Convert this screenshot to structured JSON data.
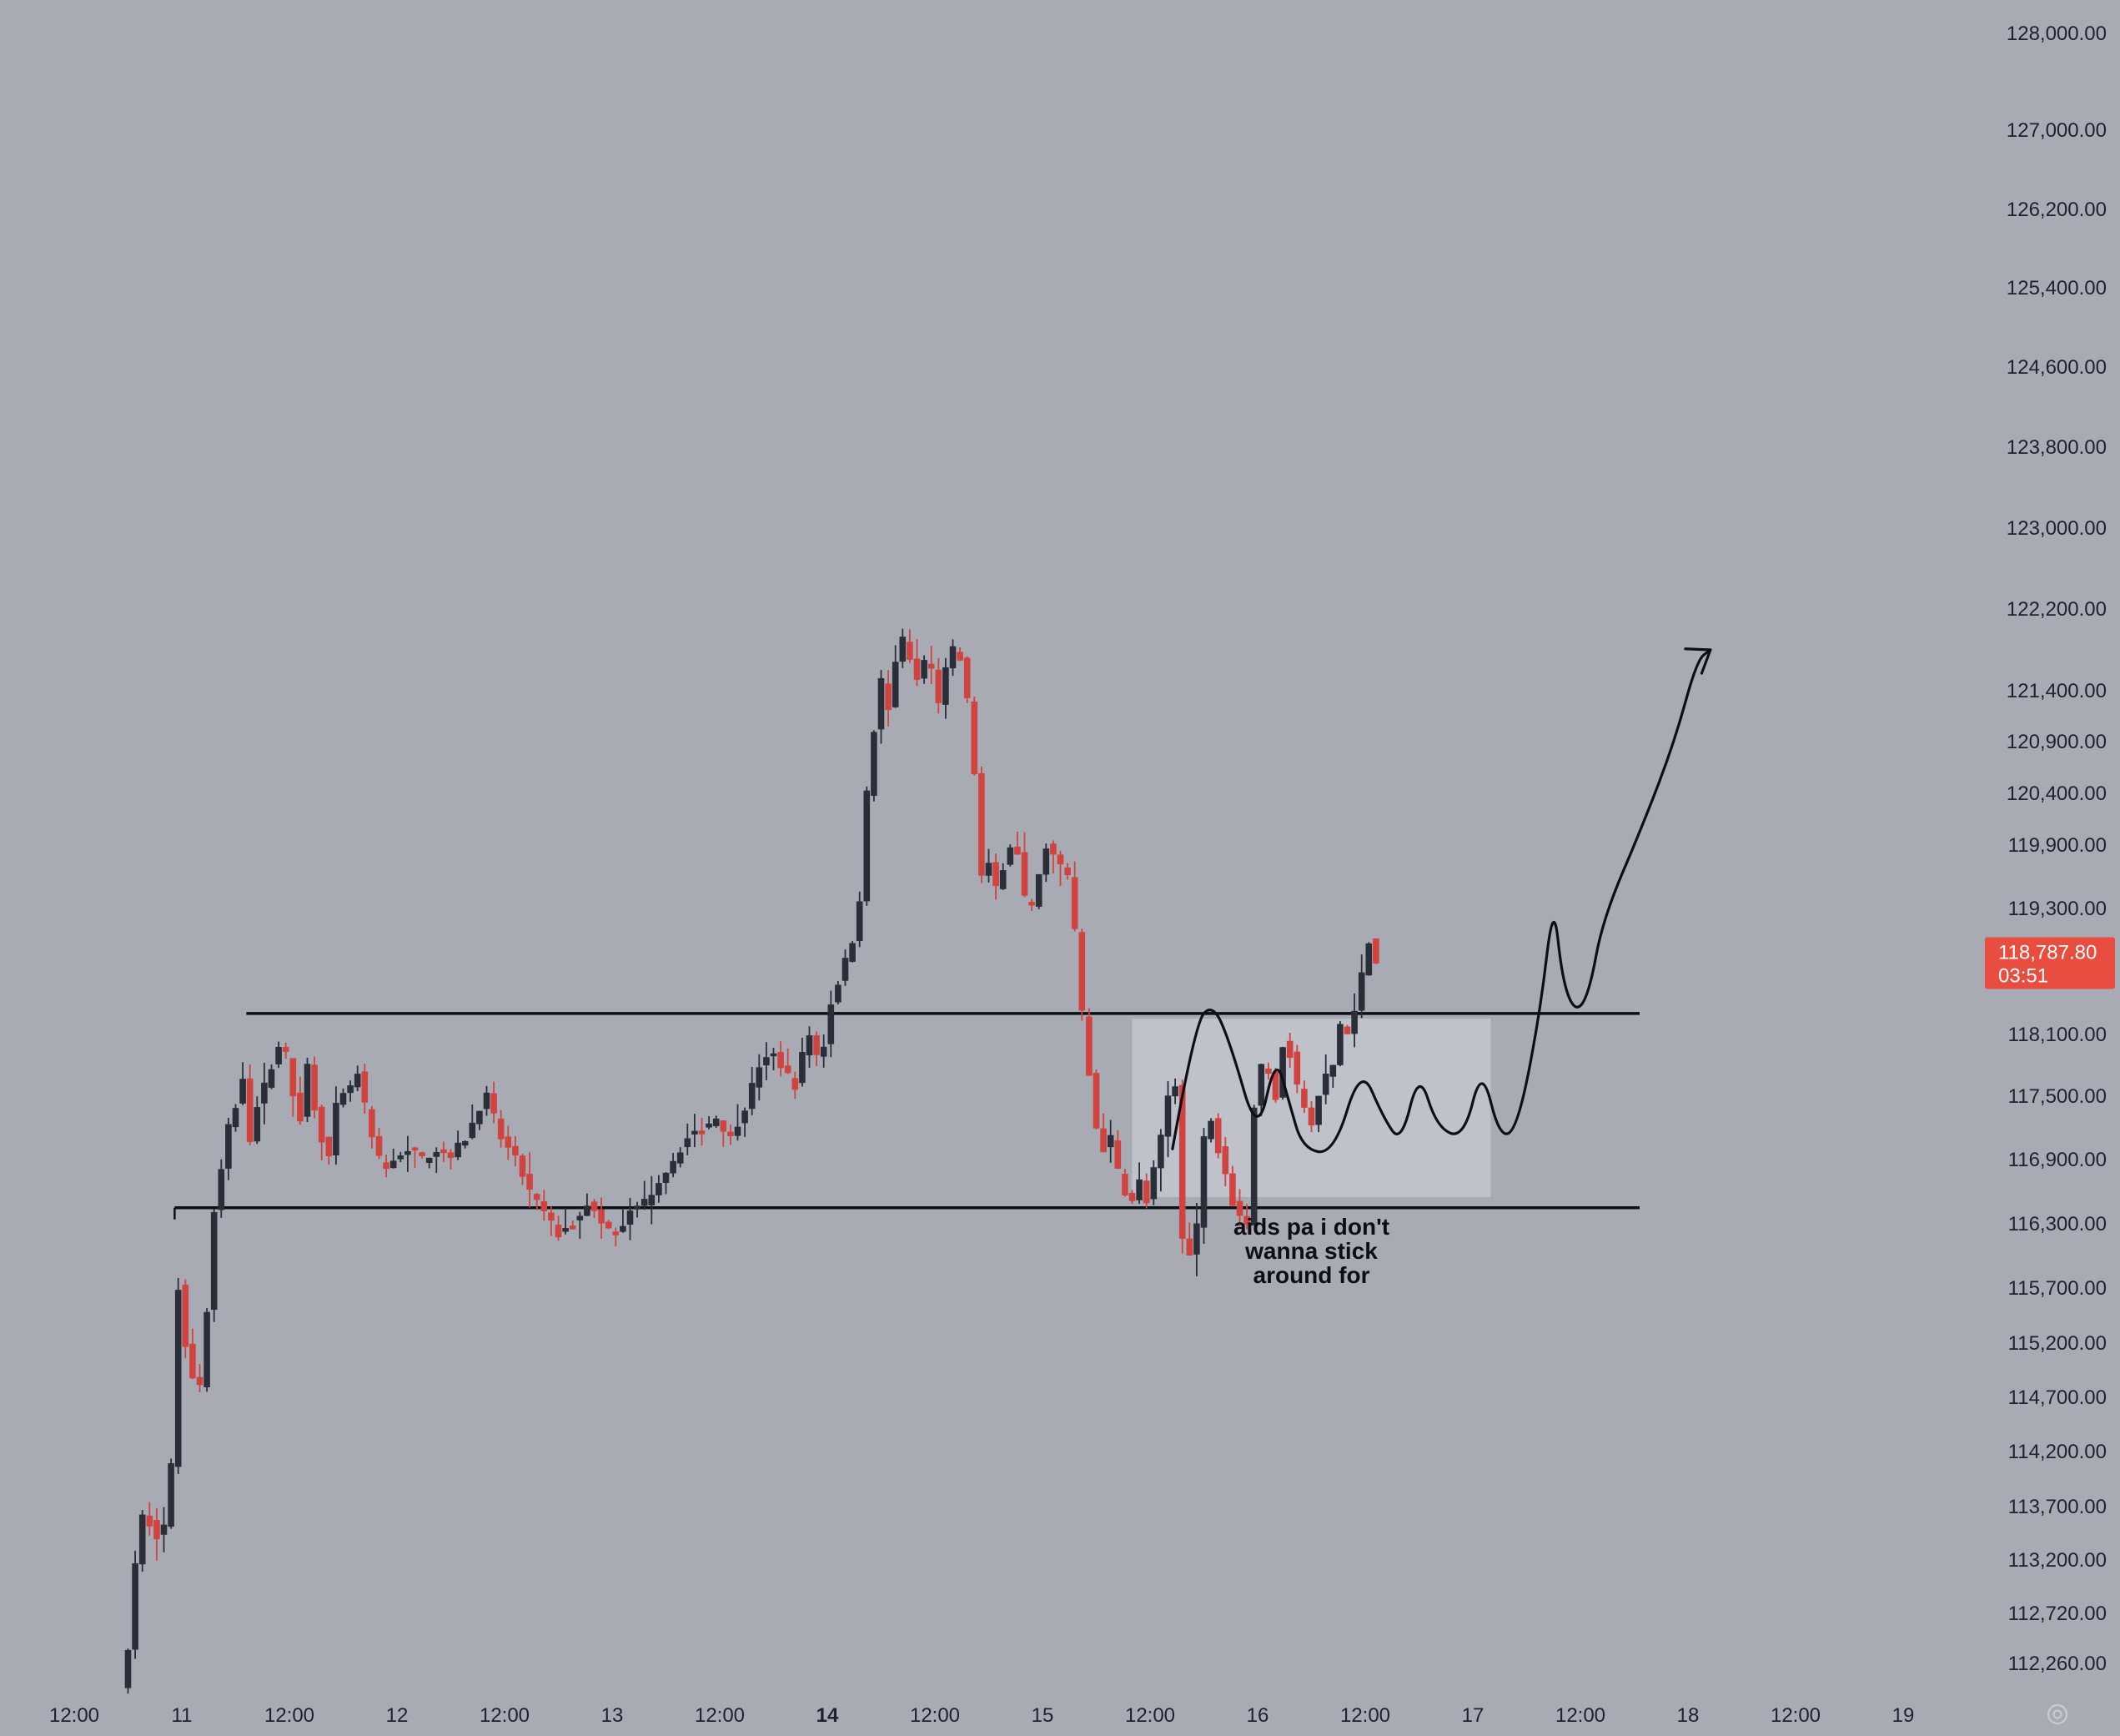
{
  "chart_data": {
    "type": "candlestick",
    "title": "",
    "price_axis": {
      "ticks": [
        {
          "value": 128000,
          "label": "128,000.00"
        },
        {
          "value": 127000,
          "label": "127,000.00"
        },
        {
          "value": 126200,
          "label": "126,200.00"
        },
        {
          "value": 125400,
          "label": "125,400.00"
        },
        {
          "value": 124600,
          "label": "124,600.00"
        },
        {
          "value": 123800,
          "label": "123,800.00"
        },
        {
          "value": 123000,
          "label": "123,000.00"
        },
        {
          "value": 122200,
          "label": "122,200.00"
        },
        {
          "value": 121400,
          "label": "121,400.00"
        },
        {
          "value": 120900,
          "label": "120,900.00"
        },
        {
          "value": 120400,
          "label": "120,400.00"
        },
        {
          "value": 119900,
          "label": "119,900.00"
        },
        {
          "value": 119300,
          "label": "119,300.00"
        },
        {
          "value": 118100,
          "label": "118,100.00"
        },
        {
          "value": 117500,
          "label": "117,500.00"
        },
        {
          "value": 116900,
          "label": "116,900.00"
        },
        {
          "value": 116300,
          "label": "116,300.00"
        },
        {
          "value": 115700,
          "label": "115,700.00"
        },
        {
          "value": 115200,
          "label": "115,200.00"
        },
        {
          "value": 114700,
          "label": "114,700.00"
        },
        {
          "value": 114200,
          "label": "114,200.00"
        },
        {
          "value": 113700,
          "label": "113,700.00"
        },
        {
          "value": 113200,
          "label": "113,200.00"
        },
        {
          "value": 112720,
          "label": "112,720.00"
        },
        {
          "value": 112260,
          "label": "112,260.00"
        }
      ]
    },
    "time_axis": {
      "ticks": [
        {
          "t": -12,
          "label": "12:00",
          "bold": false
        },
        {
          "t": 0,
          "label": "11",
          "bold": false
        },
        {
          "t": 12,
          "label": "12:00",
          "bold": false
        },
        {
          "t": 24,
          "label": "12",
          "bold": false
        },
        {
          "t": 36,
          "label": "12:00",
          "bold": false
        },
        {
          "t": 48,
          "label": "13",
          "bold": false
        },
        {
          "t": 60,
          "label": "12:00",
          "bold": false
        },
        {
          "t": 72,
          "label": "14",
          "bold": true
        },
        {
          "t": 84,
          "label": "12:00",
          "bold": false
        },
        {
          "t": 96,
          "label": "15",
          "bold": false
        },
        {
          "t": 108,
          "label": "12:00",
          "bold": false
        },
        {
          "t": 120,
          "label": "16",
          "bold": false
        },
        {
          "t": 132,
          "label": "12:00",
          "bold": false
        },
        {
          "t": 144,
          "label": "17",
          "bold": false
        },
        {
          "t": 156,
          "label": "12:00",
          "bold": false
        },
        {
          "t": 168,
          "label": "18",
          "bold": false
        },
        {
          "t": 180,
          "label": "12:00",
          "bold": false
        },
        {
          "t": 192,
          "label": "19",
          "bold": false
        }
      ]
    },
    "anchors": [
      [
        -6,
        112000
      ],
      [
        -5.2,
        112800
      ],
      [
        -4.4,
        113500
      ],
      [
        -3.6,
        113700
      ],
      [
        -2.8,
        113400
      ],
      [
        -2,
        113450
      ],
      [
        -1.2,
        113600
      ],
      [
        -0.6,
        114300
      ],
      [
        0,
        115700
      ],
      [
        0.8,
        115200
      ],
      [
        1.6,
        114900
      ],
      [
        2.4,
        114800
      ],
      [
        3.2,
        115500
      ],
      [
        4,
        116400
      ],
      [
        4.8,
        116800
      ],
      [
        5.6,
        117200
      ],
      [
        6.4,
        117400
      ],
      [
        7.2,
        117700
      ],
      [
        8,
        117100
      ],
      [
        8.8,
        117400
      ],
      [
        9.6,
        117600
      ],
      [
        10.4,
        117800
      ],
      [
        11.2,
        118000
      ],
      [
        12,
        117900
      ],
      [
        12.8,
        117500
      ],
      [
        13.6,
        117300
      ],
      [
        14.4,
        117800
      ],
      [
        15.2,
        117400
      ],
      [
        16,
        117100
      ],
      [
        16.8,
        116900
      ],
      [
        17.6,
        117400
      ],
      [
        18.4,
        117500
      ],
      [
        19.2,
        117600
      ],
      [
        20,
        117700
      ],
      [
        20.8,
        117400
      ],
      [
        21.6,
        117100
      ],
      [
        22.4,
        116900
      ],
      [
        23.2,
        116800
      ],
      [
        24,
        116900
      ],
      [
        25.6,
        117000
      ],
      [
        27.2,
        116900
      ],
      [
        28.8,
        117000
      ],
      [
        30.4,
        116950
      ],
      [
        32,
        117100
      ],
      [
        33.6,
        117400
      ],
      [
        34.4,
        117500
      ],
      [
        35.2,
        117300
      ],
      [
        36,
        117100
      ],
      [
        37.6,
        116900
      ],
      [
        39.2,
        116600
      ],
      [
        40.8,
        116400
      ],
      [
        42.4,
        116200
      ],
      [
        44,
        116300
      ],
      [
        45.6,
        116500
      ],
      [
        47.2,
        116300
      ],
      [
        48.8,
        116200
      ],
      [
        50.4,
        116400
      ],
      [
        52,
        116500
      ],
      [
        53.6,
        116700
      ],
      [
        55.2,
        116900
      ],
      [
        56.8,
        117100
      ],
      [
        58.4,
        117200
      ],
      [
        60,
        117300
      ],
      [
        61.6,
        117100
      ],
      [
        63.2,
        117400
      ],
      [
        64.8,
        117800
      ],
      [
        66.4,
        117900
      ],
      [
        68,
        117700
      ],
      [
        68.8,
        117600
      ],
      [
        69.6,
        117900
      ],
      [
        70.4,
        118100
      ],
      [
        71.2,
        117900
      ],
      [
        72,
        118000
      ],
      [
        72.8,
        118400
      ],
      [
        73.6,
        118600
      ],
      [
        74.4,
        118800
      ],
      [
        75.2,
        119000
      ],
      [
        76,
        119400
      ],
      [
        76.8,
        120400
      ],
      [
        77.6,
        121000
      ],
      [
        78.4,
        121500
      ],
      [
        79.2,
        121200
      ],
      [
        80,
        121700
      ],
      [
        80.8,
        121900
      ],
      [
        81.6,
        121700
      ],
      [
        82.4,
        121500
      ],
      [
        83.2,
        121700
      ],
      [
        84,
        121600
      ],
      [
        84.8,
        121300
      ],
      [
        85.6,
        121600
      ],
      [
        86.4,
        121800
      ],
      [
        87.2,
        121700
      ],
      [
        88,
        121300
      ],
      [
        88.8,
        120600
      ],
      [
        89.6,
        119600
      ],
      [
        90.4,
        119700
      ],
      [
        91.2,
        119500
      ],
      [
        92,
        119700
      ],
      [
        92.8,
        119900
      ],
      [
        93.6,
        119800
      ],
      [
        94.4,
        119400
      ],
      [
        95.2,
        119300
      ],
      [
        96,
        119600
      ],
      [
        96.8,
        119900
      ],
      [
        97.6,
        119800
      ],
      [
        98.4,
        119700
      ],
      [
        99.2,
        119600
      ],
      [
        100,
        119100
      ],
      [
        100.8,
        118300
      ],
      [
        101.6,
        117700
      ],
      [
        102.4,
        117200
      ],
      [
        103.2,
        117000
      ],
      [
        104,
        117100
      ],
      [
        104.8,
        116800
      ],
      [
        105.6,
        116600
      ],
      [
        106.4,
        116500
      ],
      [
        107.2,
        116700
      ],
      [
        108,
        116500
      ],
      [
        108.8,
        116800
      ],
      [
        109.6,
        117100
      ],
      [
        110.4,
        117500
      ],
      [
        111.2,
        117600
      ],
      [
        112,
        116200
      ],
      [
        112.8,
        116000
      ],
      [
        113.6,
        116300
      ],
      [
        114.4,
        117100
      ],
      [
        115.2,
        117300
      ],
      [
        116,
        117000
      ],
      [
        116.8,
        116800
      ],
      [
        117.6,
        116500
      ],
      [
        118.4,
        116400
      ],
      [
        119.2,
        116300
      ],
      [
        120,
        117400
      ],
      [
        120.8,
        117800
      ],
      [
        121.6,
        117700
      ],
      [
        122.4,
        117500
      ],
      [
        123.2,
        118000
      ],
      [
        124,
        117900
      ],
      [
        124.8,
        117600
      ],
      [
        125.6,
        117400
      ],
      [
        126.4,
        117200
      ],
      [
        127.2,
        117500
      ],
      [
        128,
        117700
      ],
      [
        128.8,
        117800
      ],
      [
        129.6,
        118200
      ],
      [
        130.4,
        118100
      ],
      [
        131.2,
        118300
      ],
      [
        132,
        118700
      ],
      [
        132.8,
        119000
      ],
      [
        133.6,
        118800
      ]
    ],
    "levels": [
      {
        "name": "resistance",
        "price": 118300
      },
      {
        "name": "support",
        "price": 116450
      }
    ],
    "zone": {
      "price_top": 118250,
      "price_bottom": 116550,
      "t_start": 106,
      "t_end": 146
    },
    "current_price": {
      "price_label": "118,787.80",
      "countdown": "03:51",
      "price": 118787.8
    },
    "annotation": {
      "lines": [
        "aids pa i don't",
        "wanna stick",
        "around for"
      ]
    },
    "projection": [
      [
        110.5,
        117000
      ],
      [
        113,
        118200
      ],
      [
        115,
        118400
      ],
      [
        117,
        118000
      ],
      [
        120,
        117100
      ],
      [
        122,
        117900
      ],
      [
        123.5,
        117450
      ],
      [
        125,
        117000
      ],
      [
        128.5,
        116950
      ],
      [
        131.5,
        117800
      ],
      [
        134,
        117300
      ],
      [
        136,
        117050
      ],
      [
        138,
        117750
      ],
      [
        140,
        117200
      ],
      [
        143,
        117100
      ],
      [
        145,
        117800
      ],
      [
        147,
        117100
      ],
      [
        149,
        117200
      ],
      [
        151.5,
        118300
      ],
      [
        153,
        119400
      ],
      [
        154,
        118600
      ],
      [
        155.5,
        118300
      ],
      [
        157,
        118500
      ],
      [
        158.5,
        119200
      ],
      [
        163,
        120100
      ],
      [
        166.5,
        120900
      ],
      [
        169,
        121700
      ],
      [
        170.5,
        121800
      ]
    ],
    "colors": {
      "up": "#2a2e39",
      "down": "#d0433f",
      "background": "#a8abb4",
      "lines": "#0d0f14",
      "price_tag": "#e94d3f"
    }
  },
  "settings_icon": "gear-icon"
}
